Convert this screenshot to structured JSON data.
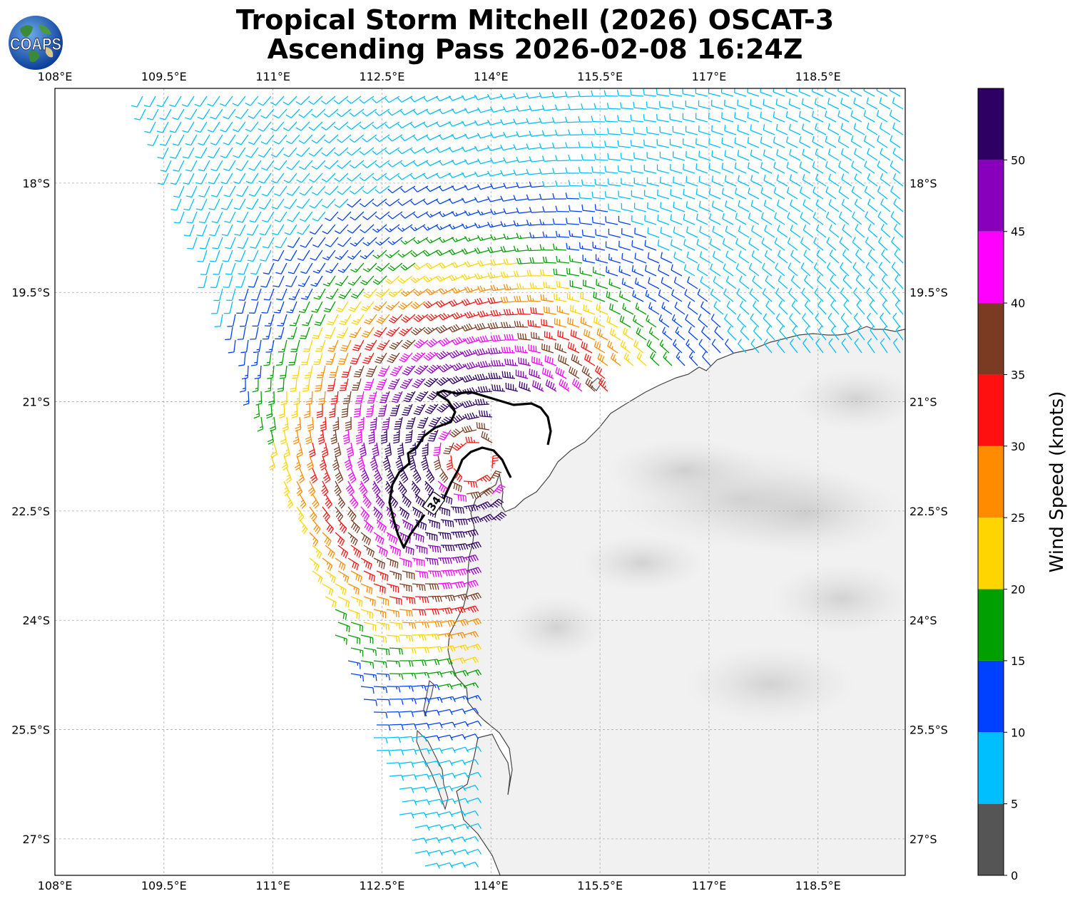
{
  "title_line1": "Tropical Storm Mitchell (2026) OSCAT-3",
  "title_line2": "Ascending Pass 2026-02-08 16:24Z",
  "logo_text": "COAPS",
  "colorbar": {
    "label": "Wind Speed (knots)",
    "ticks": [
      "0",
      "5",
      "10",
      "15",
      "20",
      "25",
      "30",
      "35",
      "40",
      "45",
      "50"
    ],
    "colors": [
      "#555555",
      "#00bfff",
      "#0040ff",
      "#00a000",
      "#ffd500",
      "#ff8c00",
      "#ff1010",
      "#7a3b22",
      "#ff00ff",
      "#8800bb",
      "#2e0063"
    ],
    "levels": [
      0,
      5,
      10,
      15,
      20,
      25,
      30,
      35,
      40,
      45,
      50,
      55
    ]
  },
  "contour_label": "34",
  "chart_data": {
    "type": "wind-barb map",
    "x_ticks": [
      "108°E",
      "109.5°E",
      "111°E",
      "112.5°E",
      "114°E",
      "115.5°E",
      "117°E",
      "118.5°E"
    ],
    "y_ticks": [
      "18°S",
      "19.5°S",
      "21°S",
      "22.5°S",
      "24°S",
      "25.5°S",
      "27°S"
    ],
    "lon_range": [
      108.0,
      119.7
    ],
    "lat_range": [
      -27.5,
      -16.7
    ],
    "x_tick_values": [
      108.0,
      109.5,
      111.0,
      112.5,
      114.0,
      115.5,
      117.0,
      118.5
    ],
    "y_tick_values": [
      -18.0,
      -19.5,
      -21.0,
      -22.5,
      -24.0,
      -25.5,
      -27.0
    ],
    "grid": true,
    "storm_center": {
      "lon": 113.75,
      "lat": -21.8
    },
    "speed_units": "knots"
  }
}
